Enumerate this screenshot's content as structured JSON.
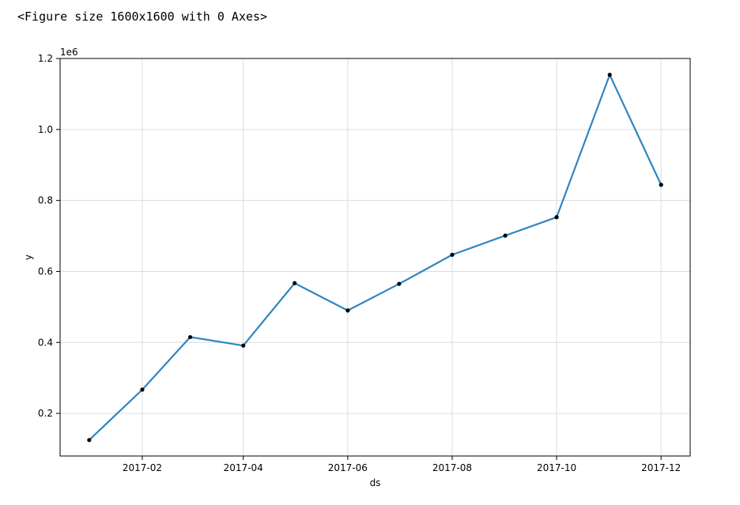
{
  "output_text": "<Figure size 1600x1600 with 0 Axes>",
  "chart_data": {
    "type": "line",
    "xlabel": "ds",
    "ylabel": "y",
    "y_offset_label": "1e6",
    "x_axis_type": "date",
    "x_ticks": [
      "2017-02",
      "2017-04",
      "2017-06",
      "2017-08",
      "2017-10",
      "2017-12"
    ],
    "y_ticks": [
      0.2,
      0.4,
      0.6,
      0.8,
      1.0,
      1.2
    ],
    "y_tick_labels": [
      "0.2",
      "0.4",
      "0.6",
      "0.8",
      "1.0",
      "1.2"
    ],
    "y_scale": 1000000,
    "xlim": [
      "2016-12-15",
      "2017-12-18"
    ],
    "ylim": [
      0.08,
      1.2
    ],
    "grid": true,
    "series": [
      {
        "color": "#2e86c1",
        "marker_color": "#000000",
        "points": [
          {
            "x": "2017-01-01",
            "y": 0.125
          },
          {
            "x": "2017-02-01",
            "y": 0.267
          },
          {
            "x": "2017-03-01",
            "y": 0.415
          },
          {
            "x": "2017-04-01",
            "y": 0.391
          },
          {
            "x": "2017-05-01",
            "y": 0.567
          },
          {
            "x": "2017-06-01",
            "y": 0.49
          },
          {
            "x": "2017-07-01",
            "y": 0.565
          },
          {
            "x": "2017-08-01",
            "y": 0.647
          },
          {
            "x": "2017-09-01",
            "y": 0.701
          },
          {
            "x": "2017-10-01",
            "y": 0.753
          },
          {
            "x": "2017-11-01",
            "y": 1.154
          },
          {
            "x": "2017-12-01",
            "y": 0.844
          }
        ]
      }
    ]
  }
}
